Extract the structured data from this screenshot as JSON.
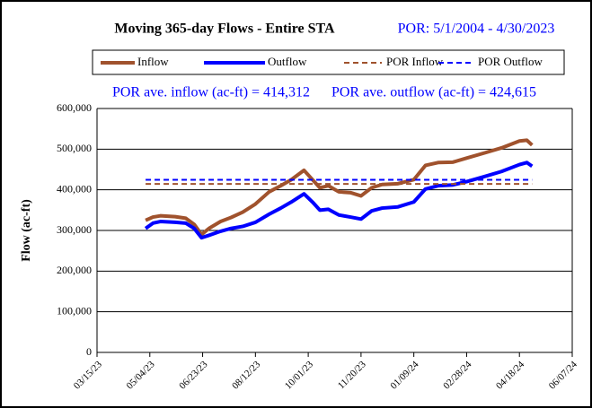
{
  "chart_data": {
    "type": "line",
    "title": "Moving 365-day Flows - Entire STA",
    "subtitle": "POR: 5/1/2004 - 4/30/2023",
    "annotations": [
      "POR ave. inflow (ac-ft) = 414,312",
      "POR ave. outflow (ac-ft) = 424,615"
    ],
    "ylabel": "Flow (ac-ft)",
    "x": [
      "2023-04-30",
      "2023-05-07",
      "2023-05-14",
      "2023-05-28",
      "2023-06-07",
      "2023-06-15",
      "2023-06-22",
      "2023-06-29",
      "2023-07-10",
      "2023-07-20",
      "2023-07-31",
      "2023-08-12",
      "2023-08-25",
      "2023-09-05",
      "2023-09-15",
      "2023-09-27",
      "2023-10-05",
      "2023-10-12",
      "2023-10-20",
      "2023-10-30",
      "2023-11-10",
      "2023-11-20",
      "2023-11-30",
      "2023-12-10",
      "2023-12-25",
      "2024-01-09",
      "2024-01-20",
      "2024-02-01",
      "2024-02-15",
      "2024-02-28",
      "2024-03-15",
      "2024-04-01",
      "2024-04-18",
      "2024-04-25",
      "2024-04-30"
    ],
    "series": [
      {
        "name": "Inflow",
        "color": "#a0522d",
        "width": 4,
        "dash": false,
        "values": [
          325000,
          333000,
          336000,
          334000,
          330000,
          315000,
          290000,
          305000,
          322000,
          332000,
          345000,
          365000,
          395000,
          410000,
          425000,
          448000,
          425000,
          405000,
          410000,
          395000,
          393000,
          385000,
          405000,
          413000,
          415000,
          425000,
          460000,
          467000,
          468000,
          478000,
          490000,
          503000,
          520000,
          522000,
          510000
        ]
      },
      {
        "name": "Outflow",
        "color": "#0000ff",
        "width": 4,
        "dash": false,
        "values": [
          305000,
          318000,
          322000,
          320000,
          318000,
          305000,
          282000,
          288000,
          298000,
          305000,
          310000,
          320000,
          340000,
          355000,
          370000,
          390000,
          370000,
          350000,
          352000,
          338000,
          333000,
          328000,
          348000,
          355000,
          358000,
          370000,
          402000,
          410000,
          412000,
          420000,
          432000,
          445000,
          462000,
          467000,
          458000
        ]
      },
      {
        "name": "POR Inflow",
        "color": "#a0522d",
        "width": 2,
        "dash": true,
        "x": [
          "2023-04-30",
          "2024-04-30"
        ],
        "values": [
          414312,
          414312
        ]
      },
      {
        "name": "POR Outflow",
        "color": "#0000ff",
        "width": 2,
        "dash": true,
        "x": [
          "2023-04-30",
          "2024-04-30"
        ],
        "values": [
          424615,
          424615
        ]
      }
    ],
    "xlim": [
      "2023-03-15",
      "2024-06-07"
    ],
    "xticks": [
      {
        "value": "2023-03-15",
        "label": "03/15/23"
      },
      {
        "value": "2023-05-04",
        "label": "05/04/23"
      },
      {
        "value": "2023-06-23",
        "label": "06/23/23"
      },
      {
        "value": "2023-08-12",
        "label": "08/12/23"
      },
      {
        "value": "2023-10-01",
        "label": "10/01/23"
      },
      {
        "value": "2023-11-20",
        "label": "11/20/23"
      },
      {
        "value": "2024-01-09",
        "label": "01/09/24"
      },
      {
        "value": "2024-02-28",
        "label": "02/28/24"
      },
      {
        "value": "2024-04-18",
        "label": "04/18/24"
      },
      {
        "value": "2024-06-07",
        "label": "06/07/24"
      }
    ],
    "ylim": [
      0,
      600000
    ],
    "yticks": [
      0,
      {
        "value": 100000,
        "label": "100,000"
      },
      {
        "value": 200000,
        "label": "200,000"
      },
      {
        "value": 300000,
        "label": "300,000"
      },
      {
        "value": 400000,
        "label": "400,000"
      },
      {
        "value": 500000,
        "label": "500,000"
      },
      {
        "value": 600000,
        "label": "600,000"
      }
    ],
    "grid": true
  }
}
